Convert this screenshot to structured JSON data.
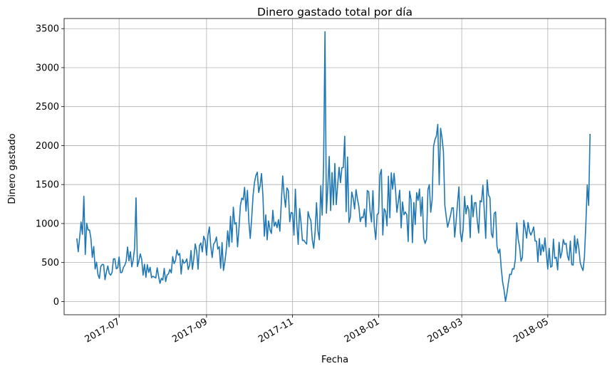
{
  "chart_data": {
    "type": "line",
    "title": "Dinero gastado total por día",
    "xlabel": "Fecha",
    "ylabel": "Dinero gastado",
    "grid": true,
    "xlim": [
      "2017-05-23",
      "2018-06-11"
    ],
    "ylim": [
      -170,
      3630
    ],
    "x_ticks": [
      "2017-07-01",
      "2017-09-01",
      "2017-11-01",
      "2018-01-01",
      "2018-03-01",
      "2018-05-01"
    ],
    "x_tick_labels": [
      "2017-07",
      "2017-09",
      "2017-11",
      "2018-01",
      "2018-03",
      "2018-05"
    ],
    "y_ticks": [
      0,
      500,
      1000,
      1500,
      2000,
      2500,
      3000,
      3500
    ],
    "y_tick_labels": [
      "0",
      "500",
      "1000",
      "1500",
      "2000",
      "2500",
      "3000",
      "3500"
    ],
    "series": [
      {
        "color": "#1f77b4",
        "x": [
          "2017-06-01",
          "2017-06-09",
          "2017-06-17",
          "2017-06-25",
          "2017-07-03",
          "2017-07-11",
          "2017-07-19",
          "2017-07-27",
          "2017-08-04",
          "2017-08-12",
          "2017-08-20",
          "2017-08-28",
          "2017-09-05",
          "2017-09-13",
          "2017-09-21",
          "2017-09-29",
          "2017-10-07",
          "2017-10-15",
          "2017-10-23",
          "2017-10-31",
          "2017-11-08",
          "2017-11-16",
          "2017-11-24",
          "2017-12-02",
          "2017-12-10",
          "2017-12-18",
          "2017-12-26",
          "2018-01-03",
          "2018-01-11",
          "2018-01-19",
          "2018-01-27",
          "2018-02-04",
          "2018-02-12",
          "2018-02-20",
          "2018-02-28",
          "2018-03-08",
          "2018-03-16",
          "2018-03-24",
          "2018-04-01",
          "2018-04-09",
          "2018-04-17",
          "2018-04-25",
          "2018-05-03",
          "2018-05-11",
          "2018-05-19",
          "2018-05-27",
          "2018-05-31"
        ],
        "values": [
          730,
          800,
          370,
          400,
          490,
          560,
          450,
          320,
          400,
          550,
          470,
          680,
          720,
          560,
          1060,
          1090,
          1480,
          920,
          1230,
          1160,
          1090,
          850,
          1360,
          1460,
          1560,
          1160,
          1070,
          1270,
          1250,
          1040,
          1160,
          990,
          1990,
          1250,
          1130,
          1120,
          1250,
          1010,
          0,
          810,
          760,
          670,
          600,
          580,
          700,
          540,
          2150
        ]
      }
    ],
    "annotations": [
      {
        "x": "2017-06-06",
        "y": 1350
      },
      {
        "x": "2017-07-13",
        "y": 1330
      },
      {
        "x": "2017-11-24",
        "y": 3460
      },
      {
        "x": "2017-12-08",
        "y": 2120
      },
      {
        "x": "2018-02-09",
        "y": 1990
      },
      {
        "x": "2018-04-01",
        "y": 0
      },
      {
        "x": "2018-05-31",
        "y": 2150
      }
    ]
  }
}
